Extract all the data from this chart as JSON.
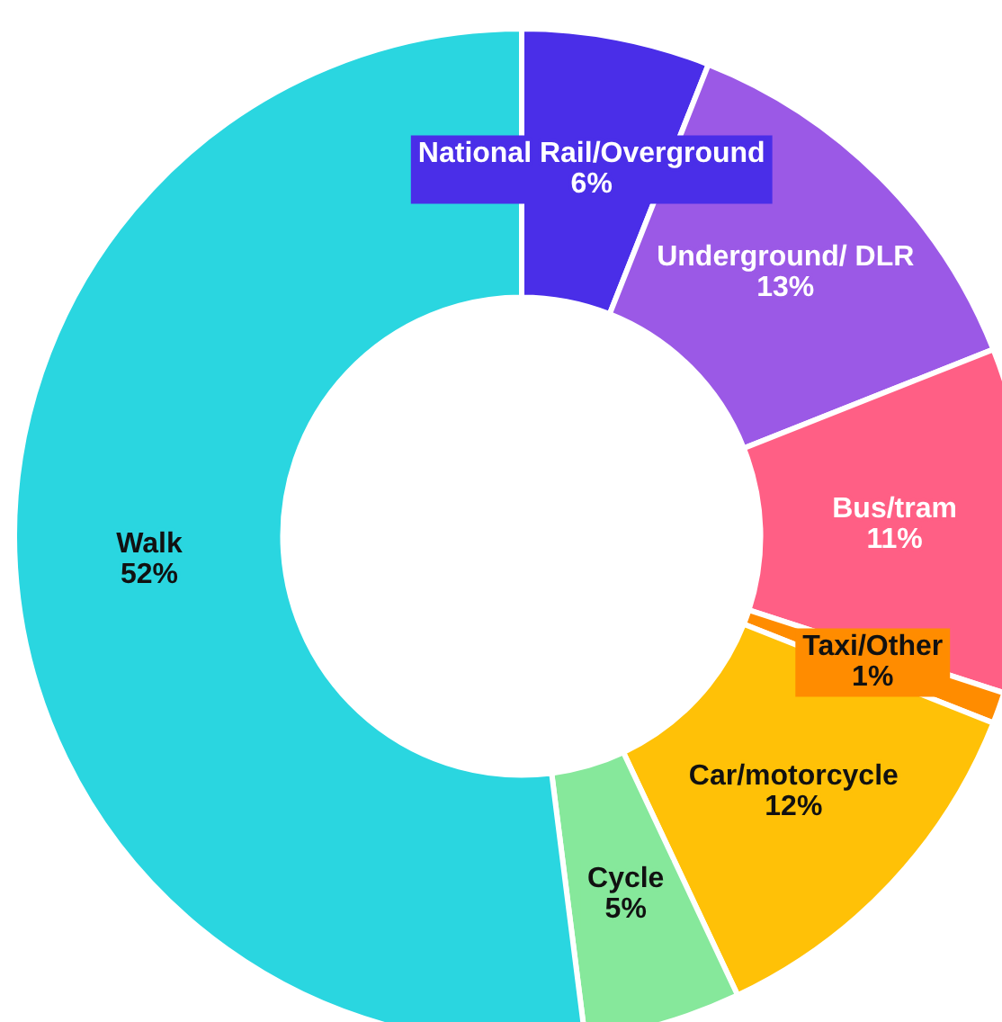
{
  "chart_data": {
    "type": "donut",
    "categories": [
      "National Rail/Overground",
      "Underground/ DLR",
      "Bus/tram",
      "Taxi/Other",
      "Car/motorcycle",
      "Cycle",
      "Walk"
    ],
    "values": [
      6,
      13,
      11,
      1,
      12,
      5,
      52
    ],
    "colors": [
      "#4a2ee8",
      "#9b59e6",
      "#ff5f85",
      "#ff8c00",
      "#ffc107",
      "#86e89b",
      "#2ad6e0"
    ],
    "value_labels": [
      "6%",
      "13%",
      "11%",
      "1%",
      "12%",
      "5%",
      "52%"
    ],
    "legend": false
  }
}
